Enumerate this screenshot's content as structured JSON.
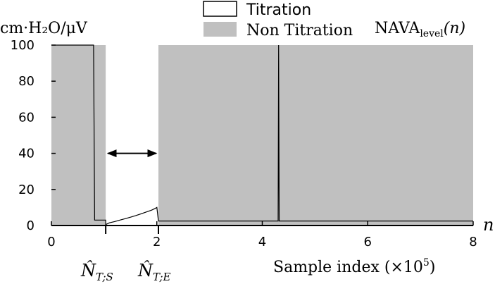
{
  "chart_data": {
    "type": "area",
    "ylabel": "cm·H₂O/μV",
    "title": "NAVA",
    "title_sub": "level",
    "title_arg": "(n)",
    "n_label": "n",
    "xlabel": "Sample index (×10",
    "xlabel_exp": "5",
    "xlabel_close": ")",
    "xlim": [
      0,
      8
    ],
    "ylim": [
      0,
      100
    ],
    "xticks": [
      "0",
      "2",
      "4",
      "6",
      "8"
    ],
    "yticks": [
      "0",
      "20",
      "40",
      "60",
      "80",
      "100"
    ],
    "legend": [
      {
        "label": "Titration",
        "fill": "#ffffff",
        "stroke": "#000000"
      },
      {
        "label": "Non Titration",
        "fill": "#c0c0c0",
        "stroke": "none"
      }
    ],
    "legend_placement": "top",
    "grid": false,
    "regions": [
      {
        "kind": "non_titration",
        "x0": 0.0,
        "x1": 1.03
      },
      {
        "kind": "titration",
        "x0": 1.03,
        "x1": 2.03
      },
      {
        "kind": "non_titration",
        "x0": 2.03,
        "x1": 8.0
      }
    ],
    "nava_level": [
      [
        0.0,
        100
      ],
      [
        0.8,
        100
      ],
      [
        0.82,
        3
      ],
      [
        1.03,
        3
      ],
      [
        1.03,
        0.5
      ],
      [
        1.1,
        1.5
      ],
      [
        1.2,
        2.2
      ],
      [
        1.3,
        3
      ],
      [
        1.4,
        3.8
      ],
      [
        1.5,
        4.6
      ],
      [
        1.6,
        5.5
      ],
      [
        1.7,
        6.5
      ],
      [
        1.8,
        7.5
      ],
      [
        1.9,
        8.5
      ],
      [
        1.97,
        9.5
      ],
      [
        2.0,
        10
      ],
      [
        2.03,
        2.5
      ],
      [
        4.3,
        2.5
      ],
      [
        4.31,
        100
      ],
      [
        4.32,
        2.5
      ],
      [
        8.0,
        2.5
      ]
    ],
    "annotations": [
      {
        "type": "double_arrow",
        "x0": 1.03,
        "x1": 2.03,
        "y": 40
      },
      {
        "type": "marker",
        "x": 1.03,
        "label": "N̂",
        "sub": "T;S"
      },
      {
        "type": "marker",
        "x": 2.03,
        "label": "N̂",
        "sub": "T;E"
      }
    ],
    "colors": {
      "non_titration": "#c0c0c0",
      "line": "#000000"
    }
  }
}
